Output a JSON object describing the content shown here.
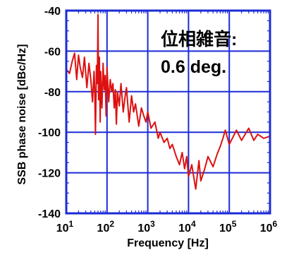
{
  "chart_data": {
    "type": "line",
    "title": "",
    "xlabel": "Frequency [Hz]",
    "ylabel": "SSB phase noise [dBc/Hz]",
    "xscale": "log",
    "xlim": [
      10,
      1000000
    ],
    "ylim": [
      -140,
      -40
    ],
    "grid": true,
    "yticks": [
      -140,
      -120,
      -100,
      -80,
      -60,
      -40
    ],
    "ytick_labels": [
      "-140",
      "-120",
      "-100",
      "-80",
      "-60",
      "-40"
    ],
    "xticks": [
      10,
      100,
      1000,
      10000,
      100000,
      1000000
    ],
    "xtick_labels": [
      {
        "base": "10",
        "exp": "1"
      },
      {
        "base": "10",
        "exp": "2"
      },
      {
        "base": "10",
        "exp": "3"
      },
      {
        "base": "10",
        "exp": "4"
      },
      {
        "base": "10",
        "exp": "5"
      },
      {
        "base": "10",
        "exp": "6"
      }
    ],
    "annotation": {
      "line1": "位相雑音:",
      "line2": "0.6 deg."
    },
    "colors": {
      "series": "#dd1111",
      "frame": "#1b2bd6",
      "grid": "#1b2bd6"
    },
    "series": [
      {
        "x": [
          10,
          12,
          14,
          16,
          18,
          20,
          22,
          25,
          28,
          32,
          36,
          40,
          44,
          48,
          50,
          52,
          55,
          58,
          60,
          62,
          65,
          68,
          70,
          75,
          80,
          85,
          90,
          95,
          100,
          110,
          120,
          130,
          140,
          150,
          160,
          170,
          180,
          200,
          220,
          250,
          280,
          300,
          350,
          400,
          450,
          500,
          600,
          700,
          800,
          900,
          1000,
          1200,
          1500,
          1800,
          2000,
          2500,
          3000,
          3500,
          4000,
          5000,
          6000,
          7000,
          8000,
          9000,
          10000,
          12000,
          15000,
          18000,
          20000,
          25000,
          30000,
          40000,
          50000,
          60000,
          70000,
          80000,
          100000,
          150000,
          200000,
          300000,
          400000,
          500000,
          700000,
          1000000
        ],
        "y": [
          -69,
          -71,
          -65,
          -61,
          -74,
          -62,
          -68,
          -73,
          -63,
          -78,
          -66,
          -74,
          -85,
          -70,
          -80,
          -101,
          -67,
          -76,
          -42,
          -84,
          -63,
          -95,
          -70,
          -88,
          -66,
          -79,
          -72,
          -92,
          -68,
          -85,
          -74,
          -80,
          -76,
          -88,
          -79,
          -96,
          -80,
          -87,
          -76,
          -90,
          -82,
          -78,
          -95,
          -82,
          -90,
          -86,
          -97,
          -88,
          -92,
          -95,
          -90,
          -98,
          -95,
          -103,
          -100,
          -105,
          -103,
          -108,
          -106,
          -112,
          -116,
          -110,
          -118,
          -112,
          -122,
          -116,
          -128,
          -114,
          -124,
          -118,
          -112,
          -117,
          -111,
          -107,
          -103,
          -99,
          -106,
          -99,
          -104,
          -98,
          -104,
          -101,
          -103,
          -102
        ]
      }
    ]
  }
}
